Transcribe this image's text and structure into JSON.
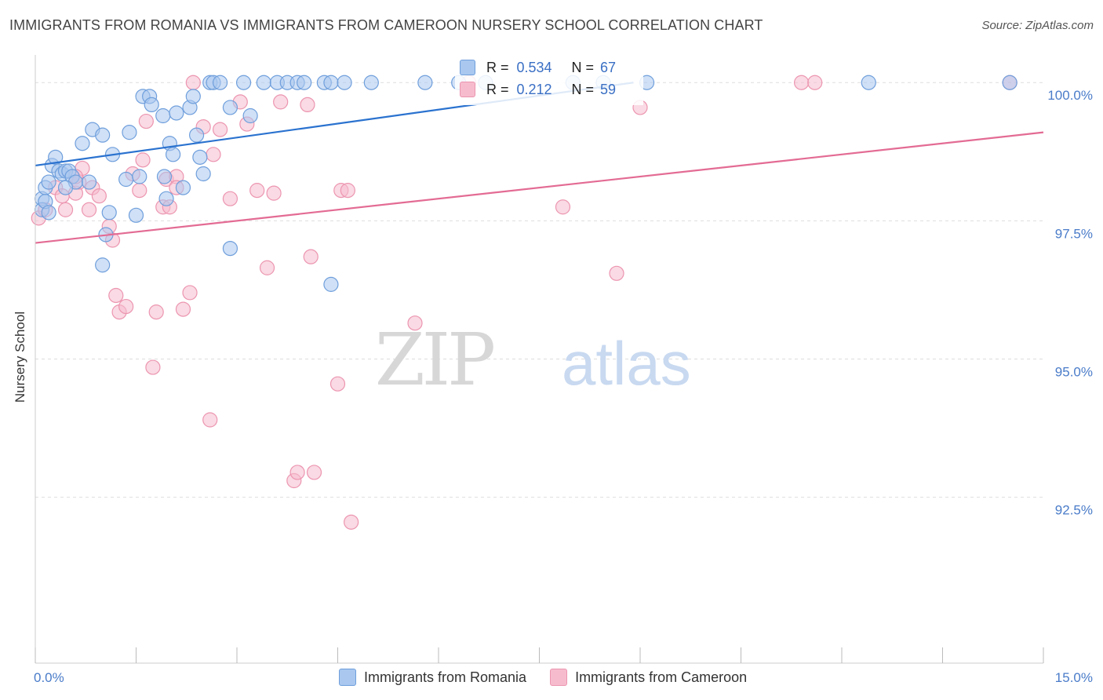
{
  "title": "IMMIGRANTS FROM ROMANIA VS IMMIGRANTS FROM CAMEROON NURSERY SCHOOL CORRELATION CHART",
  "source": "Source: ZipAtlas.com",
  "watermark": {
    "zip": "ZIP",
    "atlas": "atlas"
  },
  "colors": {
    "romania_fill": "#a9c7ef",
    "romania_stroke": "#6f9fdc",
    "romania_line": "#2a72cf",
    "cameroon_fill": "#f6bccd",
    "cameroon_stroke": "#ec95b0",
    "cameroon_line": "#e36b94",
    "tick_label": "#4a7cc9",
    "grid": "#dddddd"
  },
  "stats": {
    "romania": {
      "r_label": "R =",
      "r_value": "0.534",
      "n_label": "N =",
      "n_value": "67"
    },
    "cameroon": {
      "r_label": "R =",
      "r_value": "0.212",
      "n_label": "N =",
      "n_value": "59"
    }
  },
  "legend": {
    "romania": "Immigrants from Romania",
    "cameroon": "Immigrants from Cameroon"
  },
  "chart_data": {
    "type": "scatter",
    "title": "IMMIGRANTS FROM ROMANIA VS IMMIGRANTS FROM CAMEROON NURSERY SCHOOL CORRELATION CHART",
    "xlabel": "",
    "ylabel": "Nursery School",
    "xlim": [
      0,
      15
    ],
    "ylim": [
      89.5,
      100.5
    ],
    "x_tick_labels": [
      "0.0%",
      "15.0%"
    ],
    "y_ticks": [
      92.5,
      95.0,
      97.5,
      100.0
    ],
    "y_tick_labels": [
      "92.5%",
      "95.0%",
      "97.5%",
      "100.0%"
    ],
    "grid": true,
    "legend_position": "bottom-center",
    "series": [
      {
        "name": "Immigrants from Romania",
        "trend": [
          [
            0,
            98.5
          ],
          [
            8.9,
            100.0
          ]
        ],
        "points": [
          [
            0.1,
            97.9
          ],
          [
            0.15,
            98.1
          ],
          [
            0.2,
            98.2
          ],
          [
            0.25,
            98.5
          ],
          [
            0.3,
            98.65
          ],
          [
            0.35,
            98.4
          ],
          [
            0.4,
            98.35
          ],
          [
            0.45,
            98.4
          ],
          [
            0.5,
            98.4
          ],
          [
            0.55,
            98.3
          ],
          [
            0.6,
            98.2
          ],
          [
            0.7,
            98.9
          ],
          [
            0.8,
            98.2
          ],
          [
            0.85,
            99.15
          ],
          [
            1.0,
            99.05
          ],
          [
            1.1,
            97.65
          ],
          [
            1.15,
            98.7
          ],
          [
            1.35,
            98.25
          ],
          [
            1.4,
            99.1
          ],
          [
            1.5,
            97.6
          ],
          [
            1.55,
            98.3
          ],
          [
            1.6,
            99.75
          ],
          [
            1.7,
            99.75
          ],
          [
            1.73,
            99.6
          ],
          [
            1.9,
            99.4
          ],
          [
            1.92,
            98.3
          ],
          [
            1.95,
            97.9
          ],
          [
            2.0,
            98.9
          ],
          [
            2.05,
            98.7
          ],
          [
            2.1,
            99.45
          ],
          [
            2.2,
            98.1
          ],
          [
            2.3,
            99.55
          ],
          [
            2.35,
            99.75
          ],
          [
            2.4,
            99.05
          ],
          [
            2.45,
            98.65
          ],
          [
            2.5,
            98.35
          ],
          [
            2.6,
            100.0
          ],
          [
            2.65,
            100.0
          ],
          [
            2.75,
            100.0
          ],
          [
            2.9,
            99.55
          ],
          [
            3.1,
            100.0
          ],
          [
            3.2,
            99.4
          ],
          [
            3.4,
            100.0
          ],
          [
            3.6,
            100.0
          ],
          [
            3.75,
            100.0
          ],
          [
            3.9,
            100.0
          ],
          [
            4.0,
            100.0
          ],
          [
            4.3,
            100.0
          ],
          [
            4.4,
            100.0
          ],
          [
            4.6,
            100.0
          ],
          [
            5.0,
            100.0
          ],
          [
            5.8,
            100.0
          ],
          [
            6.3,
            100.0
          ],
          [
            6.7,
            100.0
          ],
          [
            8.0,
            100.0
          ],
          [
            8.45,
            100.0
          ],
          [
            9.1,
            100.0
          ],
          [
            12.4,
            100.0
          ],
          [
            14.5,
            100.0
          ],
          [
            1.0,
            96.7
          ],
          [
            2.9,
            97.0
          ],
          [
            4.4,
            96.35
          ],
          [
            1.05,
            97.25
          ],
          [
            0.1,
            97.7
          ],
          [
            0.15,
            97.85
          ],
          [
            0.45,
            98.1
          ],
          [
            0.2,
            97.65
          ]
        ]
      },
      {
        "name": "Immigrants from Cameroon",
        "trend": [
          [
            0,
            97.1
          ],
          [
            15,
            99.1
          ]
        ],
        "points": [
          [
            0.05,
            97.55
          ],
          [
            0.15,
            97.7
          ],
          [
            0.3,
            98.1
          ],
          [
            0.4,
            97.95
          ],
          [
            0.45,
            97.7
          ],
          [
            0.6,
            98.0
          ],
          [
            0.65,
            98.2
          ],
          [
            0.7,
            98.45
          ],
          [
            0.8,
            97.7
          ],
          [
            0.85,
            98.1
          ],
          [
            0.95,
            97.95
          ],
          [
            1.1,
            97.4
          ],
          [
            1.15,
            97.15
          ],
          [
            1.2,
            96.15
          ],
          [
            1.25,
            95.85
          ],
          [
            1.35,
            95.95
          ],
          [
            1.45,
            98.35
          ],
          [
            1.55,
            98.05
          ],
          [
            1.6,
            98.6
          ],
          [
            1.65,
            99.3
          ],
          [
            1.75,
            94.85
          ],
          [
            1.8,
            95.85
          ],
          [
            1.9,
            97.75
          ],
          [
            1.95,
            98.25
          ],
          [
            2.0,
            97.75
          ],
          [
            2.1,
            98.3
          ],
          [
            2.2,
            95.9
          ],
          [
            2.3,
            96.2
          ],
          [
            2.35,
            100.0
          ],
          [
            2.5,
            99.2
          ],
          [
            2.6,
            93.9
          ],
          [
            2.65,
            98.7
          ],
          [
            2.75,
            99.15
          ],
          [
            2.9,
            97.9
          ],
          [
            3.05,
            99.65
          ],
          [
            3.15,
            99.25
          ],
          [
            3.3,
            98.05
          ],
          [
            3.45,
            96.65
          ],
          [
            3.55,
            98.0
          ],
          [
            3.65,
            99.65
          ],
          [
            3.85,
            92.8
          ],
          [
            3.9,
            92.95
          ],
          [
            4.05,
            99.6
          ],
          [
            4.1,
            96.85
          ],
          [
            4.15,
            92.95
          ],
          [
            4.5,
            94.55
          ],
          [
            4.55,
            98.05
          ],
          [
            4.65,
            98.05
          ],
          [
            4.7,
            92.05
          ],
          [
            5.65,
            95.65
          ],
          [
            6.45,
            100.0
          ],
          [
            7.85,
            97.75
          ],
          [
            8.65,
            96.55
          ],
          [
            9.0,
            99.55
          ],
          [
            11.4,
            100.0
          ],
          [
            11.6,
            100.0
          ],
          [
            14.5,
            100.0
          ],
          [
            2.1,
            98.1
          ],
          [
            0.6,
            98.3
          ]
        ]
      }
    ]
  }
}
